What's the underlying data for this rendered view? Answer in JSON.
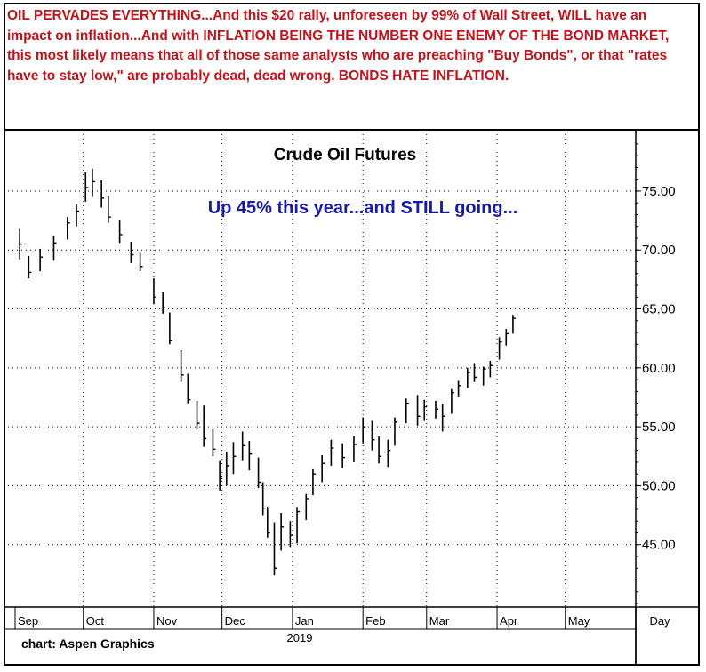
{
  "headline": "OIL PERVADES EVERYTHING...And this $20 rally, unforeseen by 99% of Wall Street, WILL have an impact on inflation...And with INFLATION BEING THE NUMBER ONE ENEMY OF THE BOND MARKET, this most likely means that all of those same analysts who are preaching \"Buy Bonds\", or that \"rates have to stay low,\" are probably dead, dead wrong. BONDS HATE INFLATION.",
  "colors": {
    "headline": "#c0141c",
    "annotation": "#1a1aa8",
    "bars": "#000000",
    "grid": "#000000"
  },
  "chart_data": {
    "type": "bar",
    "subtype": "ohlc",
    "title": "Crude Oil Futures",
    "annotation": "Up 45% this year...and STILL going...",
    "credit": "chart: Aspen Graphics",
    "x_tick_labels": [
      "Sep",
      "Oct",
      "Nov",
      "Dec",
      "Jan",
      "Feb",
      "Mar",
      "Apr",
      "May"
    ],
    "x_unit_label": "Day",
    "year_label": "2019",
    "y_tick_labels": [
      "75.00",
      "70.00",
      "65.00",
      "60.00",
      "55.00",
      "50.00",
      "45.00"
    ],
    "y_ticks": [
      75,
      70,
      65,
      60,
      55,
      50,
      45
    ],
    "ylim": [
      39.7,
      80.2
    ],
    "xlim": [
      "2018-09-01",
      "2019-05-31"
    ],
    "grid": true,
    "grid_style": "dotted",
    "series": [
      {
        "values": [
          {
            "date": "2018-09-03",
            "high": 71.8,
            "low": 69.2,
            "close": 70.5
          },
          {
            "date": "2018-09-07",
            "high": 69.5,
            "low": 67.6,
            "close": 68.1
          },
          {
            "date": "2018-09-12",
            "high": 70.1,
            "low": 68.2,
            "close": 69.4
          },
          {
            "date": "2018-09-18",
            "high": 71.2,
            "low": 69.1,
            "close": 70.6
          },
          {
            "date": "2018-09-24",
            "high": 72.8,
            "low": 70.9,
            "close": 72.3
          },
          {
            "date": "2018-09-28",
            "high": 73.9,
            "low": 72.0,
            "close": 73.3
          },
          {
            "date": "2018-10-02",
            "high": 76.6,
            "low": 74.1,
            "close": 75.3
          },
          {
            "date": "2018-10-05",
            "high": 76.9,
            "low": 74.5,
            "close": 75.8
          },
          {
            "date": "2018-10-09",
            "high": 75.9,
            "low": 73.6,
            "close": 74.4
          },
          {
            "date": "2018-10-12",
            "high": 74.6,
            "low": 72.3,
            "close": 72.8
          },
          {
            "date": "2018-10-17",
            "high": 72.5,
            "low": 70.6,
            "close": 71.3
          },
          {
            "date": "2018-10-22",
            "high": 70.7,
            "low": 68.9,
            "close": 69.6
          },
          {
            "date": "2018-10-26",
            "high": 69.8,
            "low": 68.2,
            "close": 68.6
          },
          {
            "date": "2018-11-01",
            "high": 67.6,
            "low": 65.4,
            "close": 66.0
          },
          {
            "date": "2018-11-05",
            "high": 66.4,
            "low": 64.6,
            "close": 65.1
          },
          {
            "date": "2018-11-08",
            "high": 64.7,
            "low": 62.0,
            "close": 62.3
          },
          {
            "date": "2018-11-13",
            "high": 61.5,
            "low": 58.8,
            "close": 59.4
          },
          {
            "date": "2018-11-16",
            "high": 59.5,
            "low": 57.0,
            "close": 57.3
          },
          {
            "date": "2018-11-20",
            "high": 57.2,
            "low": 54.8,
            "close": 55.3
          },
          {
            "date": "2018-11-23",
            "high": 56.8,
            "low": 53.3,
            "close": 54.0
          },
          {
            "date": "2018-11-27",
            "high": 54.8,
            "low": 52.5,
            "close": 53.1
          },
          {
            "date": "2018-11-30",
            "high": 52.1,
            "low": 49.6,
            "close": 50.6
          },
          {
            "date": "2018-12-03",
            "high": 52.9,
            "low": 50.0,
            "close": 51.7
          },
          {
            "date": "2018-12-06",
            "high": 53.7,
            "low": 51.0,
            "close": 52.5
          },
          {
            "date": "2018-12-10",
            "high": 54.6,
            "low": 52.1,
            "close": 53.4
          },
          {
            "date": "2018-12-13",
            "high": 53.8,
            "low": 51.3,
            "close": 52.7
          },
          {
            "date": "2018-12-17",
            "high": 52.4,
            "low": 49.8,
            "close": 50.3
          },
          {
            "date": "2018-12-19",
            "high": 50.3,
            "low": 47.5,
            "close": 48.1
          },
          {
            "date": "2018-12-21",
            "high": 48.2,
            "low": 45.6,
            "close": 46.0
          },
          {
            "date": "2018-12-24",
            "high": 46.9,
            "low": 42.4,
            "close": 43.0
          },
          {
            "date": "2018-12-27",
            "high": 47.7,
            "low": 44.5,
            "close": 46.5
          },
          {
            "date": "2018-12-31",
            "high": 47.0,
            "low": 44.8,
            "close": 45.8
          },
          {
            "date": "2019-01-03",
            "high": 48.2,
            "low": 45.1,
            "close": 47.8
          },
          {
            "date": "2019-01-07",
            "high": 49.3,
            "low": 47.1,
            "close": 48.9
          },
          {
            "date": "2019-01-10",
            "high": 51.4,
            "low": 49.2,
            "close": 51.0
          },
          {
            "date": "2019-01-14",
            "high": 52.6,
            "low": 50.3,
            "close": 51.9
          },
          {
            "date": "2019-01-18",
            "high": 53.9,
            "low": 51.7,
            "close": 53.2
          },
          {
            "date": "2019-01-23",
            "high": 53.6,
            "low": 51.5,
            "close": 52.4
          },
          {
            "date": "2019-01-28",
            "high": 54.2,
            "low": 52.0,
            "close": 53.5
          },
          {
            "date": "2019-02-01",
            "high": 55.8,
            "low": 53.6,
            "close": 55.0
          },
          {
            "date": "2019-02-05",
            "high": 55.5,
            "low": 53.0,
            "close": 53.9
          },
          {
            "date": "2019-02-08",
            "high": 54.2,
            "low": 51.9,
            "close": 52.5
          },
          {
            "date": "2019-02-12",
            "high": 53.9,
            "low": 51.6,
            "close": 53.0
          },
          {
            "date": "2019-02-15",
            "high": 55.8,
            "low": 53.4,
            "close": 55.4
          },
          {
            "date": "2019-02-20",
            "high": 57.4,
            "low": 55.3,
            "close": 57.0
          },
          {
            "date": "2019-02-25",
            "high": 57.7,
            "low": 55.1,
            "close": 55.9
          },
          {
            "date": "2019-02-28",
            "high": 57.3,
            "low": 55.5,
            "close": 56.7
          },
          {
            "date": "2019-03-05",
            "high": 57.2,
            "low": 55.7,
            "close": 56.5
          },
          {
            "date": "2019-03-08",
            "high": 56.9,
            "low": 54.6,
            "close": 55.9
          },
          {
            "date": "2019-03-12",
            "high": 58.2,
            "low": 56.1,
            "close": 57.9
          },
          {
            "date": "2019-03-15",
            "high": 58.9,
            "low": 57.5,
            "close": 58.5
          },
          {
            "date": "2019-03-19",
            "high": 60.0,
            "low": 58.3,
            "close": 59.6
          },
          {
            "date": "2019-03-22",
            "high": 60.4,
            "low": 58.8,
            "close": 59.2
          },
          {
            "date": "2019-03-26",
            "high": 60.1,
            "low": 58.5,
            "close": 59.9
          },
          {
            "date": "2019-03-29",
            "high": 60.6,
            "low": 59.2,
            "close": 60.2
          },
          {
            "date": "2019-04-02",
            "high": 62.6,
            "low": 60.7,
            "close": 62.2
          },
          {
            "date": "2019-04-05",
            "high": 63.3,
            "low": 61.9,
            "close": 62.9
          },
          {
            "date": "2019-04-08",
            "high": 64.5,
            "low": 62.9,
            "close": 64.2
          }
        ]
      }
    ]
  }
}
